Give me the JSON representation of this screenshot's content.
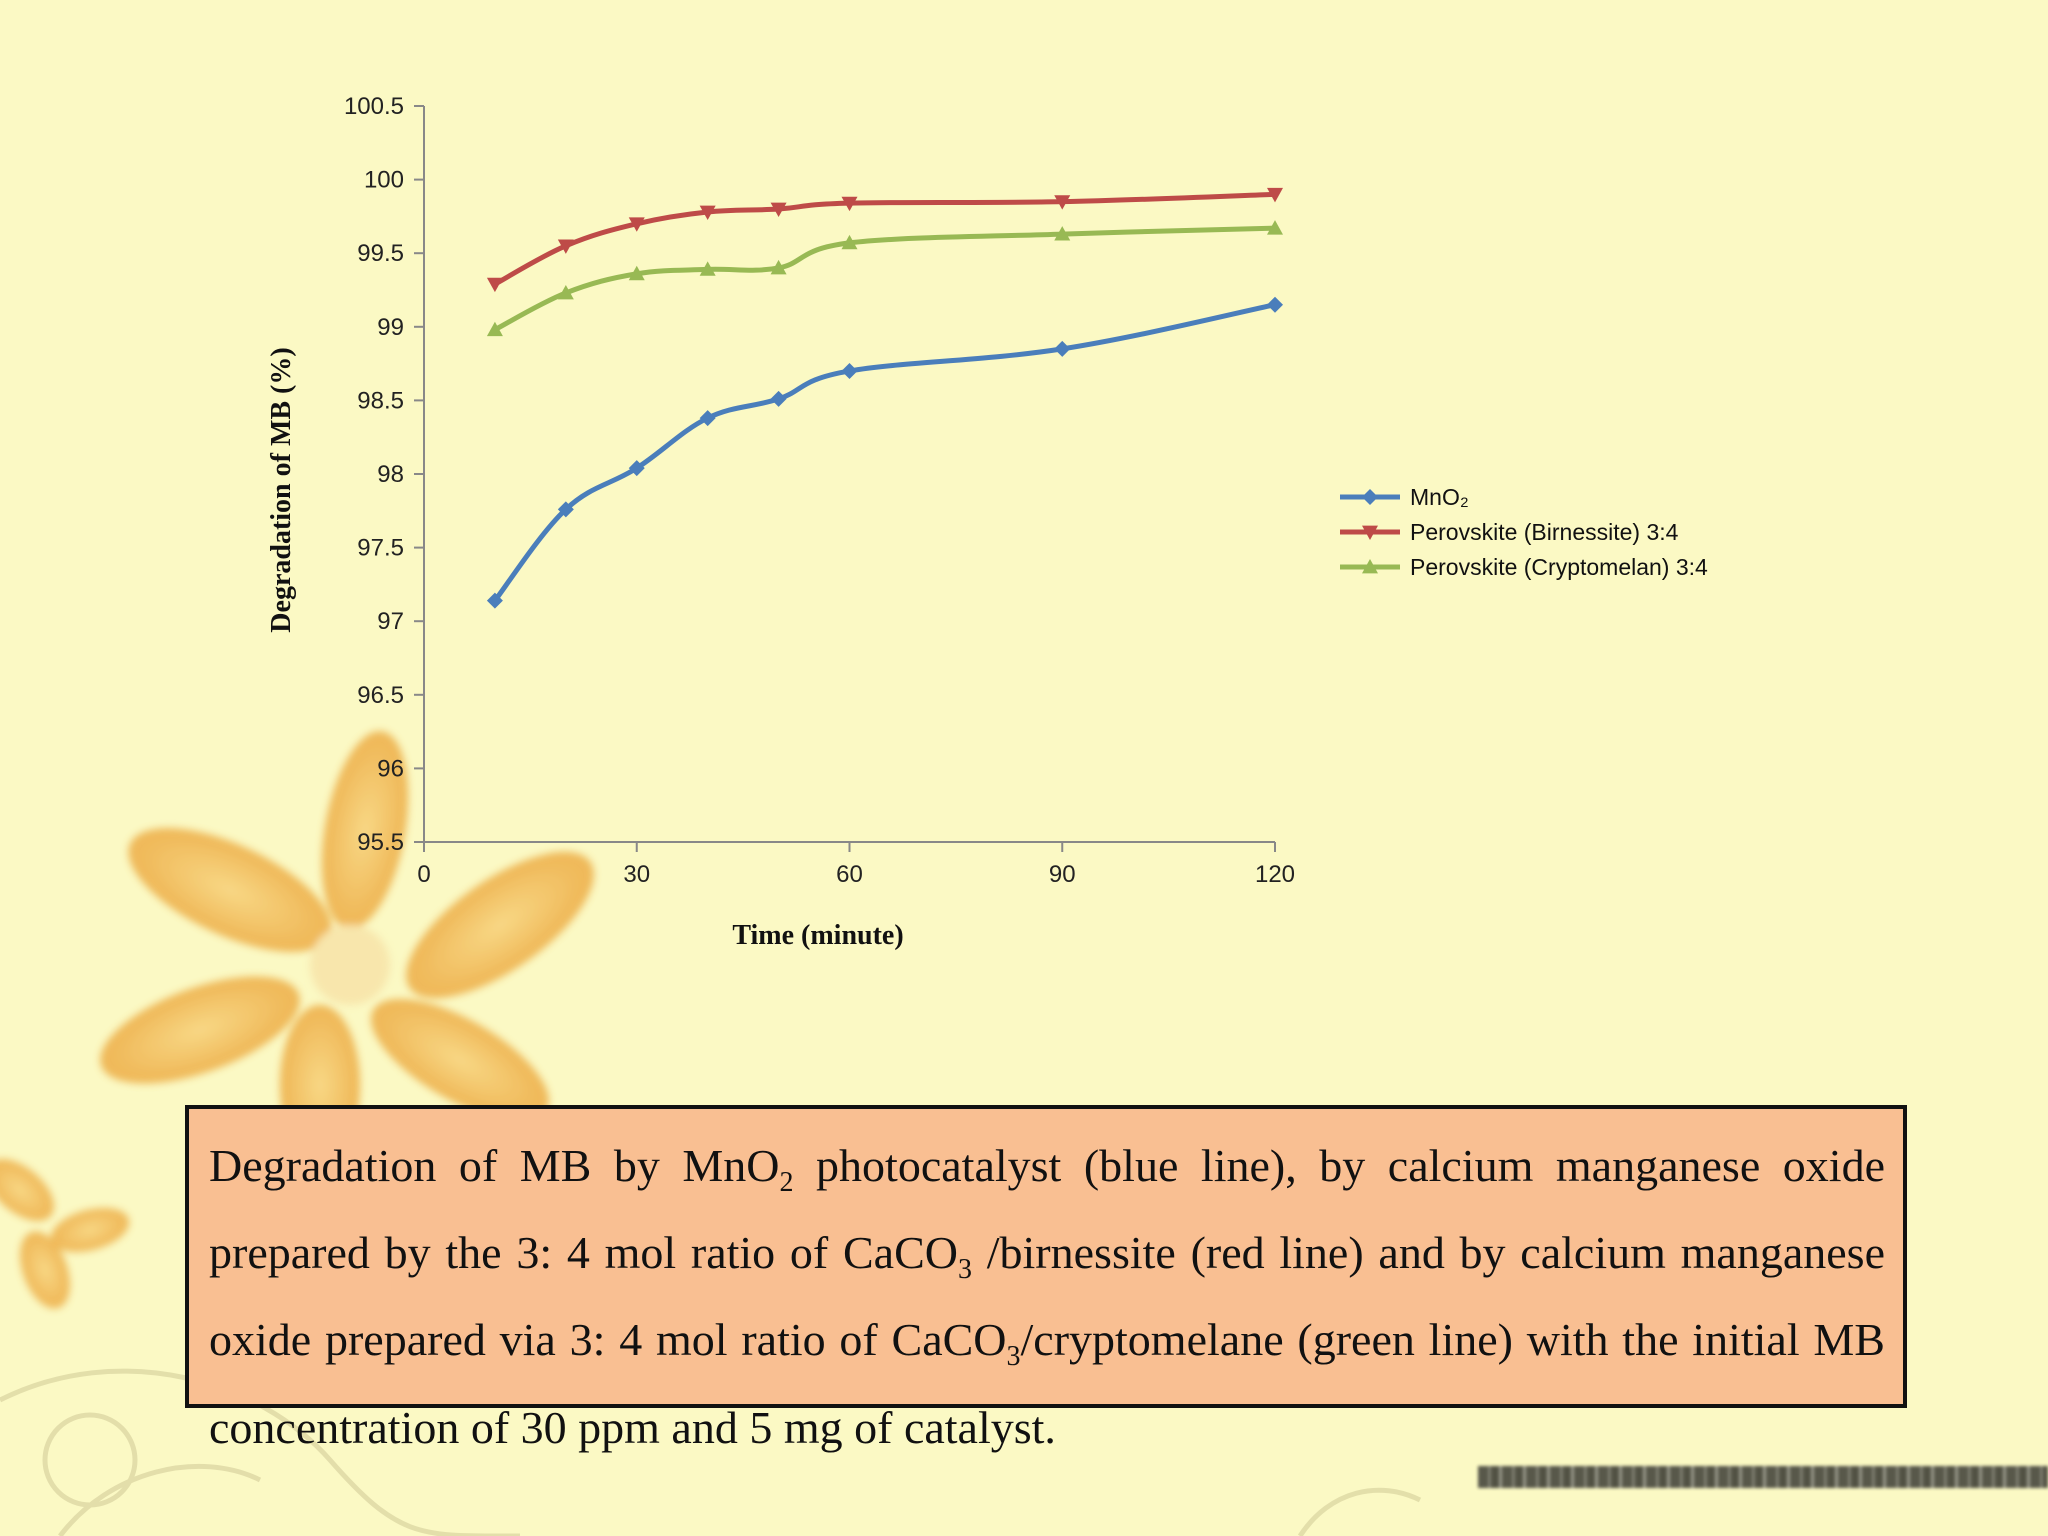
{
  "colors": {
    "background": "#fbf9c4",
    "caption_fill": "#f9bf92",
    "mno2": "#4a7ebb",
    "birnessite": "#be4b48",
    "cryptomelan": "#98b954"
  },
  "chart_data": {
    "type": "line",
    "xlabel": "Time (minute)",
    "ylabel": "Degradation of MB (%)",
    "xlim": [
      0,
      120
    ],
    "ylim": [
      95.5,
      100.5
    ],
    "x_ticks": [
      "0",
      "30",
      "60",
      "90",
      "120"
    ],
    "y_ticks": [
      "95.5",
      "96",
      "96.5",
      "97",
      "97.5",
      "98",
      "98.5",
      "99",
      "99.5",
      "100",
      "100.5"
    ],
    "grid": false,
    "legend_position": "right",
    "series": [
      {
        "name": "MnO₂",
        "marker": "diamond",
        "color": "#4a7ebb",
        "x": [
          10,
          20,
          30,
          40,
          50,
          60,
          90,
          120
        ],
        "y": [
          97.14,
          97.76,
          98.04,
          98.38,
          98.51,
          98.7,
          98.85,
          99.15
        ]
      },
      {
        "name": "Perovskite (Birnessite) 3:4",
        "marker": "triangle-down",
        "color": "#be4b48",
        "x": [
          10,
          20,
          30,
          40,
          50,
          60,
          90,
          120
        ],
        "y": [
          99.29,
          99.55,
          99.7,
          99.78,
          99.8,
          99.84,
          99.85,
          99.9
        ]
      },
      {
        "name": "Perovskite (Cryptomelan) 3:4",
        "marker": "triangle-up",
        "color": "#98b954",
        "x": [
          10,
          20,
          30,
          40,
          50,
          60,
          90,
          120
        ],
        "y": [
          98.98,
          99.23,
          99.36,
          99.39,
          99.4,
          99.57,
          99.63,
          99.67
        ]
      }
    ]
  },
  "caption": {
    "p1": "Degradation  of  MB by MnO",
    "sub1": "2",
    "p2": "  photocatalyst (blue line), by  calcium manganese oxide  prepared  by  the 3: 4 mol ratio of CaCO",
    "sub2": "3",
    "p3": " /birnessite (red line) and by calcium manganese oxide prepared via 3: 4 mol ratio of CaCO",
    "sub3": "3",
    "p4": "/cryptomelane (green line) with the initial MB concentration of  30 ppm and  5 mg of catalyst."
  }
}
